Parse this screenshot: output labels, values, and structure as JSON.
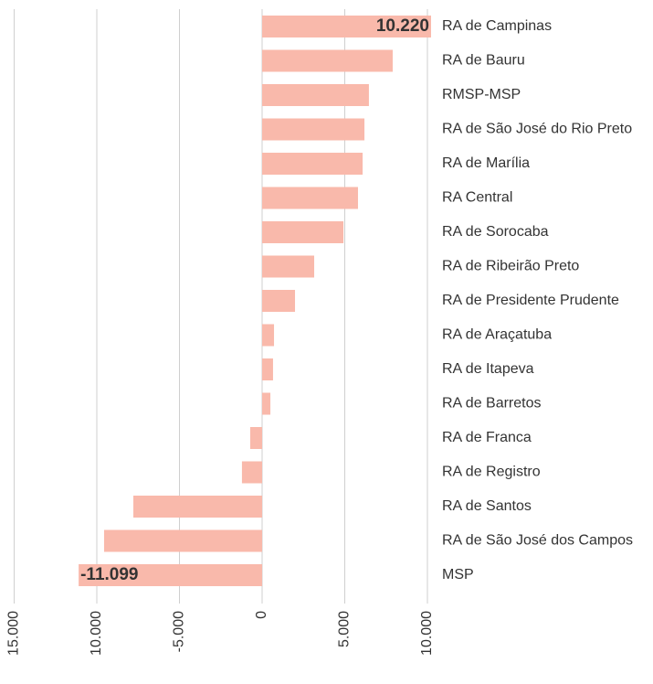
{
  "chart_data": {
    "type": "hbar",
    "categories": [
      "RA de Campinas",
      "RA de Bauru",
      "RMSP-MSP",
      "RA de São José do Rio Preto",
      "RA de Marília",
      "RA Central",
      "RA de Sorocaba",
      "RA de Ribeirão Preto",
      "RA de Presidente Prudente",
      "RA de Araçatuba",
      "RA de Itapeva",
      "RA de Barretos",
      "RA de Franca",
      "RA de Registro",
      "RA de Santos",
      "RA de São José dos Campos",
      "MSP"
    ],
    "values": [
      10220,
      7900,
      6460,
      6190,
      6080,
      5800,
      4920,
      3150,
      1990,
      720,
      660,
      500,
      -720,
      -1220,
      -7790,
      -9560,
      -11099
    ],
    "value_labels": [
      "10.220",
      null,
      null,
      null,
      null,
      null,
      null,
      null,
      null,
      null,
      null,
      null,
      null,
      null,
      null,
      null,
      "-11.099"
    ],
    "color": "#f9b9ab",
    "xlim": [
      -15000,
      10000
    ],
    "xticks": [
      {
        "value": -15000,
        "label": "15.000"
      },
      {
        "value": -10000,
        "label": "10.000"
      },
      {
        "value": -5000,
        "label": "-5.000"
      },
      0,
      {
        "value": 5000,
        "label": "5.000"
      },
      {
        "value": 10000,
        "label": "10.000"
      }
    ],
    "grid": true
  }
}
